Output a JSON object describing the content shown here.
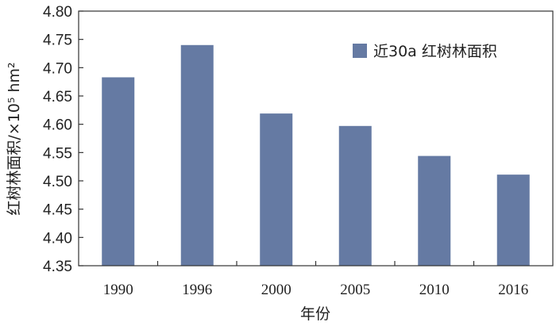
{
  "chart_data": {
    "type": "bar",
    "categories": [
      "1990",
      "1996",
      "2000",
      "2005",
      "2010",
      "2016"
    ],
    "series": [
      {
        "name": "近30a 红树林面积",
        "values": [
          4.683,
          4.74,
          4.619,
          4.597,
          4.544,
          4.511
        ],
        "color": "#657aa3"
      }
    ],
    "xlabel": "年份",
    "ylabel": "红树林面积/×10⁵ hm²",
    "ylim": [
      4.35,
      4.8
    ],
    "yticks": [
      "4.35",
      "4.40",
      "4.45",
      "4.50",
      "4.55",
      "4.60",
      "4.65",
      "4.70",
      "4.75",
      "4.80"
    ],
    "grid": false,
    "legend_position": "top-right"
  }
}
